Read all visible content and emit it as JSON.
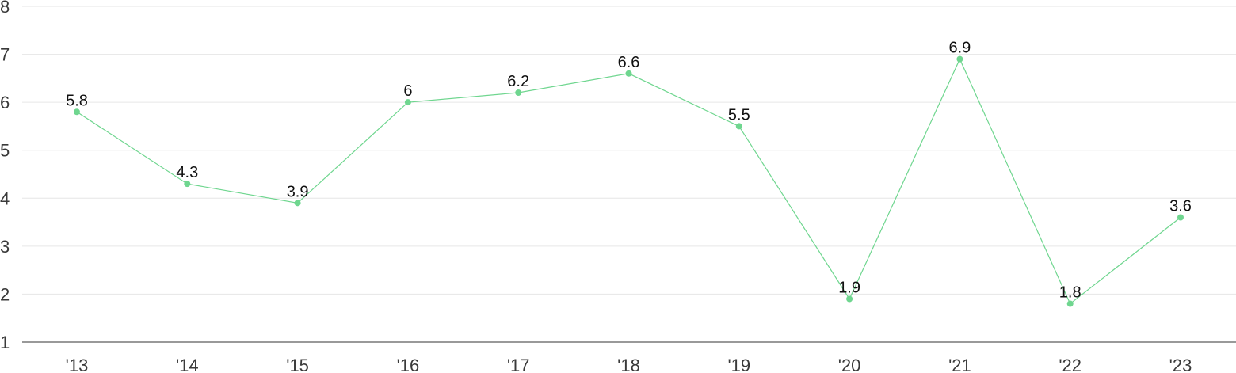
{
  "chart_data": {
    "type": "line",
    "title": "",
    "xlabel": "",
    "ylabel": "",
    "categories": [
      "'13",
      "'14",
      "'15",
      "'16",
      "'17",
      "'18",
      "'19",
      "'20",
      "'21",
      "'22",
      "'23"
    ],
    "series": [
      {
        "values": [
          5.8,
          4.3,
          3.9,
          6,
          6.2,
          6.6,
          5.5,
          1.9,
          6.9,
          1.8,
          3.6
        ],
        "color": "#6fd68f"
      }
    ],
    "data_labels": [
      "5.8",
      "4.3",
      "3.9",
      "6",
      "6.2",
      "6.6",
      "5.5",
      "1.9",
      "6.9",
      "1.8",
      "3.6"
    ],
    "y_ticks": [
      "1",
      "2",
      "3",
      "4",
      "5",
      "6",
      "7",
      "8"
    ],
    "ylim": [
      1,
      8
    ],
    "grid": true,
    "legend": "none",
    "colors": {
      "gridline": "#e6e6e6",
      "axis": "#333333",
      "text": "#3a3a3a"
    }
  }
}
